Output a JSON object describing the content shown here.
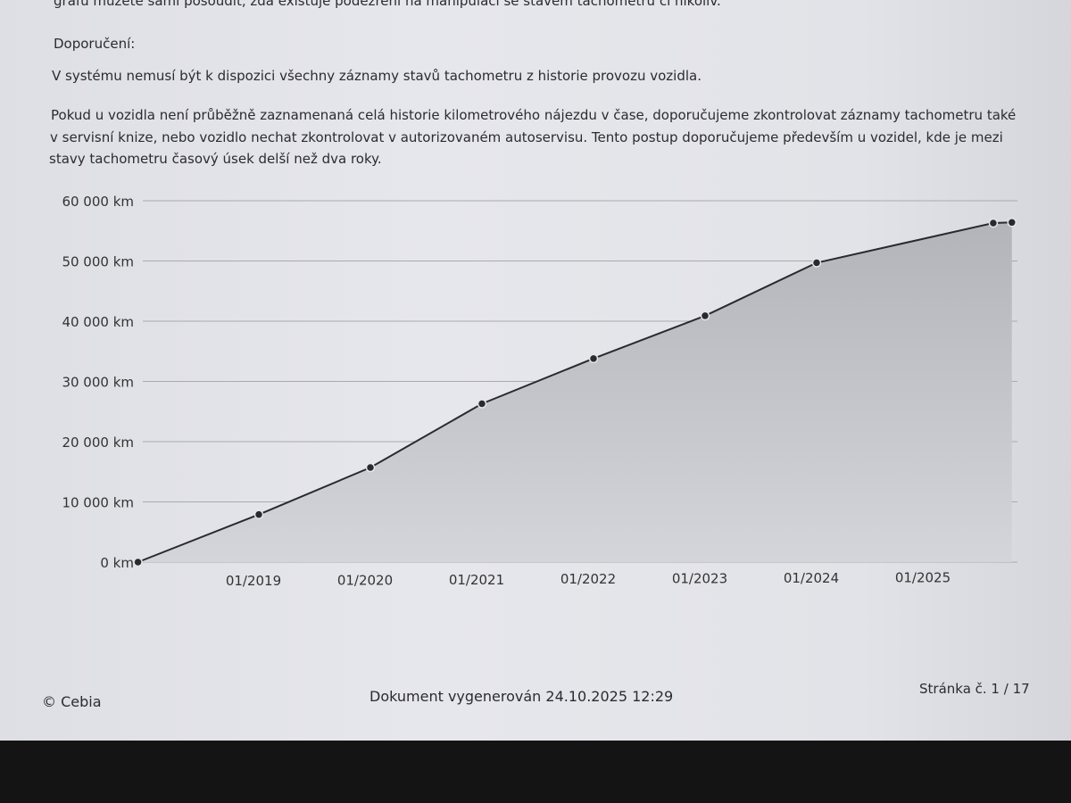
{
  "document": {
    "intro_tail": "grafu můžete sami posoudit, zda existuje podezření na manipulaci se stavem tachometru či nikoliv.",
    "recommendation_heading": "Doporučení:",
    "paragraph_1": "V systému nemusí být k dispozici všechny záznamy stavů tachometru z historie provozu vozidla.",
    "paragraph_2_lines": [
      "Pokud u vozidla není průběžně zaznamenaná celá historie kilometrového nájezdu v čase, doporučujeme zkontrolovat záznamy tachometru také",
      "v servisní knize, nebo vozidlo nechat zkontrolovat v autorizovaném autoservisu. Tento postup doporučujeme především u vozidel, kde je mezi",
      "stavy tachometru časový úsek delší než dva roky."
    ]
  },
  "chart_data": {
    "type": "area",
    "title": "",
    "xlabel": "",
    "ylabel": "",
    "ylim": [
      0,
      60000
    ],
    "xlim": [
      "2017-12",
      "2025-10"
    ],
    "grid": true,
    "y_ticks": [
      0,
      10000,
      20000,
      30000,
      40000,
      50000,
      60000
    ],
    "y_tick_labels": [
      "0 km",
      "10 000 km",
      "20 000 km",
      "30 000 km",
      "40 000 km",
      "50 000 km",
      "60 000 km"
    ],
    "x_ticks": [
      "2019-01",
      "2020-01",
      "2021-01",
      "2022-01",
      "2023-01",
      "2024-01",
      "2025-01"
    ],
    "x_tick_labels": [
      "01/2019",
      "01/2020",
      "01/2021",
      "01/2022",
      "01/2023",
      "01/2024",
      "01/2025"
    ],
    "points": [
      {
        "x": "2017-12",
        "y": 0
      },
      {
        "x": "2019-01",
        "y": 7900
      },
      {
        "x": "2020-01",
        "y": 15700
      },
      {
        "x": "2021-01",
        "y": 26300
      },
      {
        "x": "2022-01",
        "y": 33800
      },
      {
        "x": "2023-01",
        "y": 40900
      },
      {
        "x": "2024-01",
        "y": 49700
      },
      {
        "x": "2025-08",
        "y": 56300
      },
      {
        "x": "2025-10",
        "y": 56400
      }
    ],
    "line_color": "#2a2a2e",
    "fill_color": "#b9babf"
  },
  "footer": {
    "copyright": "© Cebia",
    "generated": "Dokument vygenerován 24.10.2025 12:29",
    "page": "Stránka č. 1 / 17"
  }
}
